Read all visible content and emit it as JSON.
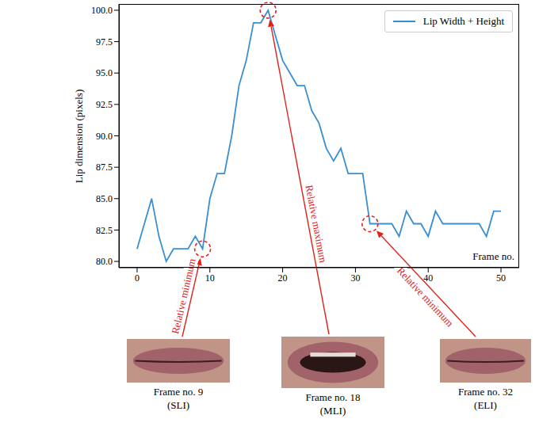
{
  "chart_data": {
    "type": "line",
    "x_label": "Frame no.",
    "y_label": "Lip dimension (pixels)",
    "x": [
      0,
      1,
      2,
      3,
      4,
      5,
      6,
      7,
      8,
      9,
      10,
      11,
      12,
      13,
      14,
      15,
      16,
      17,
      18,
      19,
      20,
      21,
      22,
      23,
      24,
      25,
      26,
      27,
      28,
      29,
      30,
      31,
      32,
      33,
      34,
      35,
      36,
      37,
      38,
      39,
      40,
      41,
      42,
      43,
      44,
      45,
      46,
      47,
      48,
      49,
      50
    ],
    "series": [
      {
        "name": "Lip Width + Height",
        "color": "#3a8fd1",
        "values": [
          81,
          83,
          85,
          82,
          80,
          81,
          81,
          81,
          82,
          81,
          85,
          87,
          87,
          90,
          94,
          96,
          99,
          99,
          100,
          98,
          96,
          95,
          94,
          94,
          92,
          91,
          89,
          88,
          89,
          87,
          87,
          87,
          83,
          83,
          83,
          83,
          82,
          84,
          83,
          83,
          82,
          84,
          83,
          83,
          83,
          83,
          83,
          83,
          82,
          84,
          84
        ]
      }
    ],
    "xlim": [
      -2.5,
      52.5
    ],
    "xticks": [
      0,
      10,
      20,
      30,
      40,
      50
    ],
    "ylim": [
      79.5,
      100.5
    ],
    "yticks": [
      {
        "value": 80,
        "label": "80.0"
      },
      {
        "value": 82.5,
        "label": "82.5"
      },
      {
        "value": 85,
        "label": "85.0"
      },
      {
        "value": 87.5,
        "label": "87.5"
      },
      {
        "value": 90,
        "label": "90.0"
      },
      {
        "value": 92.5,
        "label": "92.5"
      },
      {
        "value": 95,
        "label": "95.0"
      },
      {
        "value": 97.5,
        "label": "97.5"
      },
      {
        "value": 100,
        "label": "100.0"
      }
    ],
    "legend": "upper right",
    "grid": false,
    "annotations": [
      {
        "text": "Relative minimum",
        "x": 9,
        "y": 81,
        "caption": [
          "Frame no. 9",
          "(SLI)"
        ]
      },
      {
        "text": "Relative maximum",
        "x": 18,
        "y": 100,
        "caption": [
          "Frame no. 18",
          "(MLI)"
        ]
      },
      {
        "text": "Relative minimum",
        "x": 32,
        "y": 83,
        "caption": [
          "Frame no. 32",
          "(ELI)"
        ]
      }
    ]
  }
}
